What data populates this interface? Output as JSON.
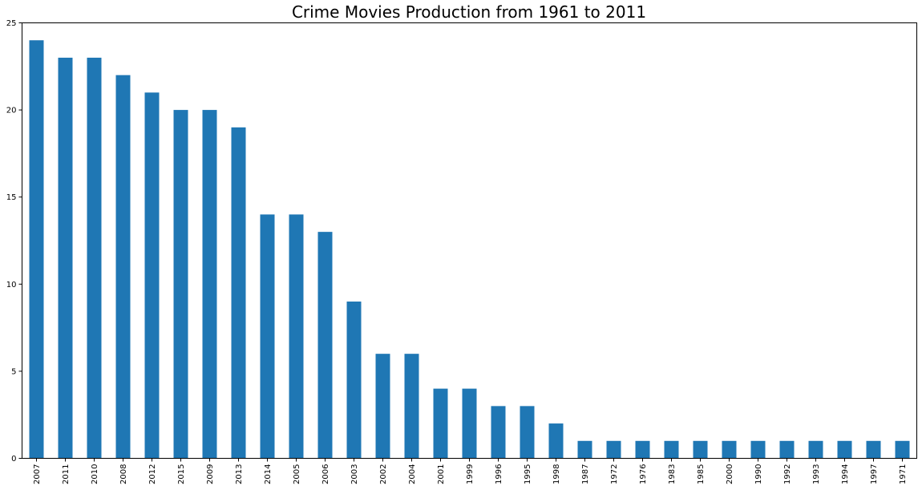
{
  "chart_data": {
    "type": "bar",
    "title": "Crime Movies Production from 1961 to 2011",
    "xlabel": "",
    "ylabel": "",
    "categories": [
      "2007",
      "2011",
      "2010",
      "2008",
      "2012",
      "2015",
      "2009",
      "2013",
      "2014",
      "2005",
      "2006",
      "2003",
      "2002",
      "2004",
      "2001",
      "1999",
      "1996",
      "1995",
      "1998",
      "1987",
      "1972",
      "1976",
      "1983",
      "1985",
      "2000",
      "1990",
      "1992",
      "1993",
      "1994",
      "1997",
      "1971"
    ],
    "values": [
      24,
      23,
      23,
      22,
      21,
      20,
      20,
      19,
      14,
      14,
      13,
      9,
      6,
      6,
      4,
      4,
      3,
      3,
      2,
      1,
      1,
      1,
      1,
      1,
      1,
      1,
      1,
      1,
      1,
      1,
      1
    ],
    "ylim": [
      0,
      25
    ],
    "yticks": [
      0,
      5,
      10,
      15,
      20,
      25
    ],
    "grid": false,
    "legend": "none",
    "bar_color": "#1f77b4"
  }
}
